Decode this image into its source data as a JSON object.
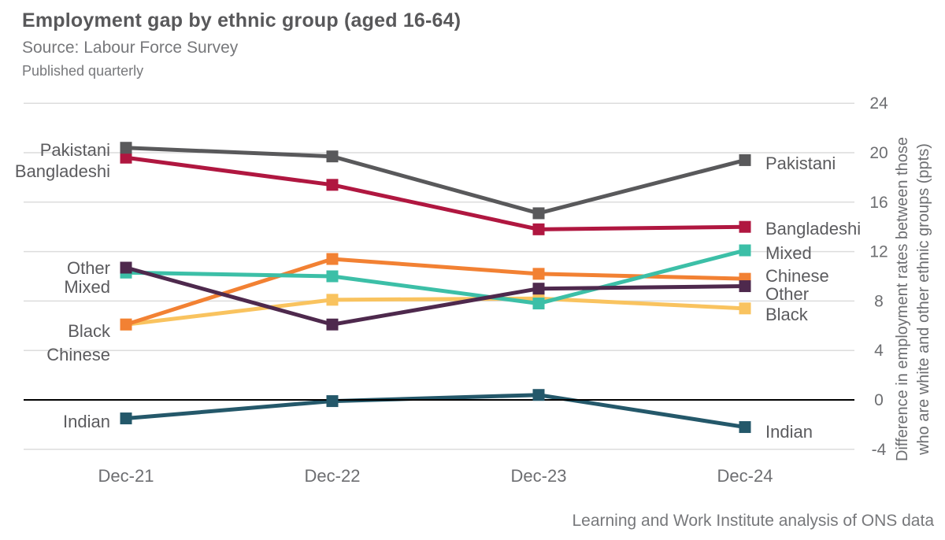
{
  "header": {
    "title": "Employment gap by ethnic group (aged 16-64)",
    "source": "Source: Labour Force Survey",
    "frequency": "Published quarterly"
  },
  "footer": {
    "attribution": "Learning and Work Institute analysis of ONS data"
  },
  "chart_data": {
    "type": "line",
    "title": "Employment gap by ethnic group (aged 16-64)",
    "subtitle": "Source: Labour Force Survey",
    "categories": [
      "Dec-21",
      "Dec-22",
      "Dec-23",
      "Dec-24"
    ],
    "series": [
      {
        "name": "Black",
        "color": "#f9c35f",
        "values": [
          6.1,
          8.1,
          8.2,
          7.4
        ]
      },
      {
        "name": "Chinese",
        "color": "#f28133",
        "values": [
          6.1,
          11.4,
          10.2,
          9.8
        ]
      },
      {
        "name": "Mixed",
        "color": "#3cbfa7",
        "values": [
          10.3,
          10.0,
          7.8,
          12.1
        ]
      },
      {
        "name": "Other",
        "color": "#4e294d",
        "values": [
          10.7,
          6.1,
          9.0,
          9.2
        ]
      },
      {
        "name": "Bangladeshi",
        "color": "#b01740",
        "values": [
          19.6,
          17.4,
          13.8,
          14.0
        ]
      },
      {
        "name": "Pakistani",
        "color": "#59595b",
        "values": [
          20.4,
          19.7,
          15.1,
          19.4
        ]
      },
      {
        "name": "Indian",
        "color": "#24586a",
        "values": [
          -1.5,
          -0.1,
          0.4,
          -2.2
        ]
      }
    ],
    "yticks": [
      24,
      20,
      16,
      12,
      8,
      4,
      0,
      -4
    ],
    "ylim": [
      -4,
      24
    ],
    "ylabel_lines": [
      "Difference in employment rates between those",
      "who are white and other ethnic groups (ppts)"
    ],
    "grid": true,
    "zero_line": true,
    "legend_position": "inline-labels",
    "colors": {
      "grid": "#dcdcdc",
      "zero_line": "#000000",
      "tick_text": "#6d6e71",
      "series_label_text": "#5b5b5e"
    }
  }
}
